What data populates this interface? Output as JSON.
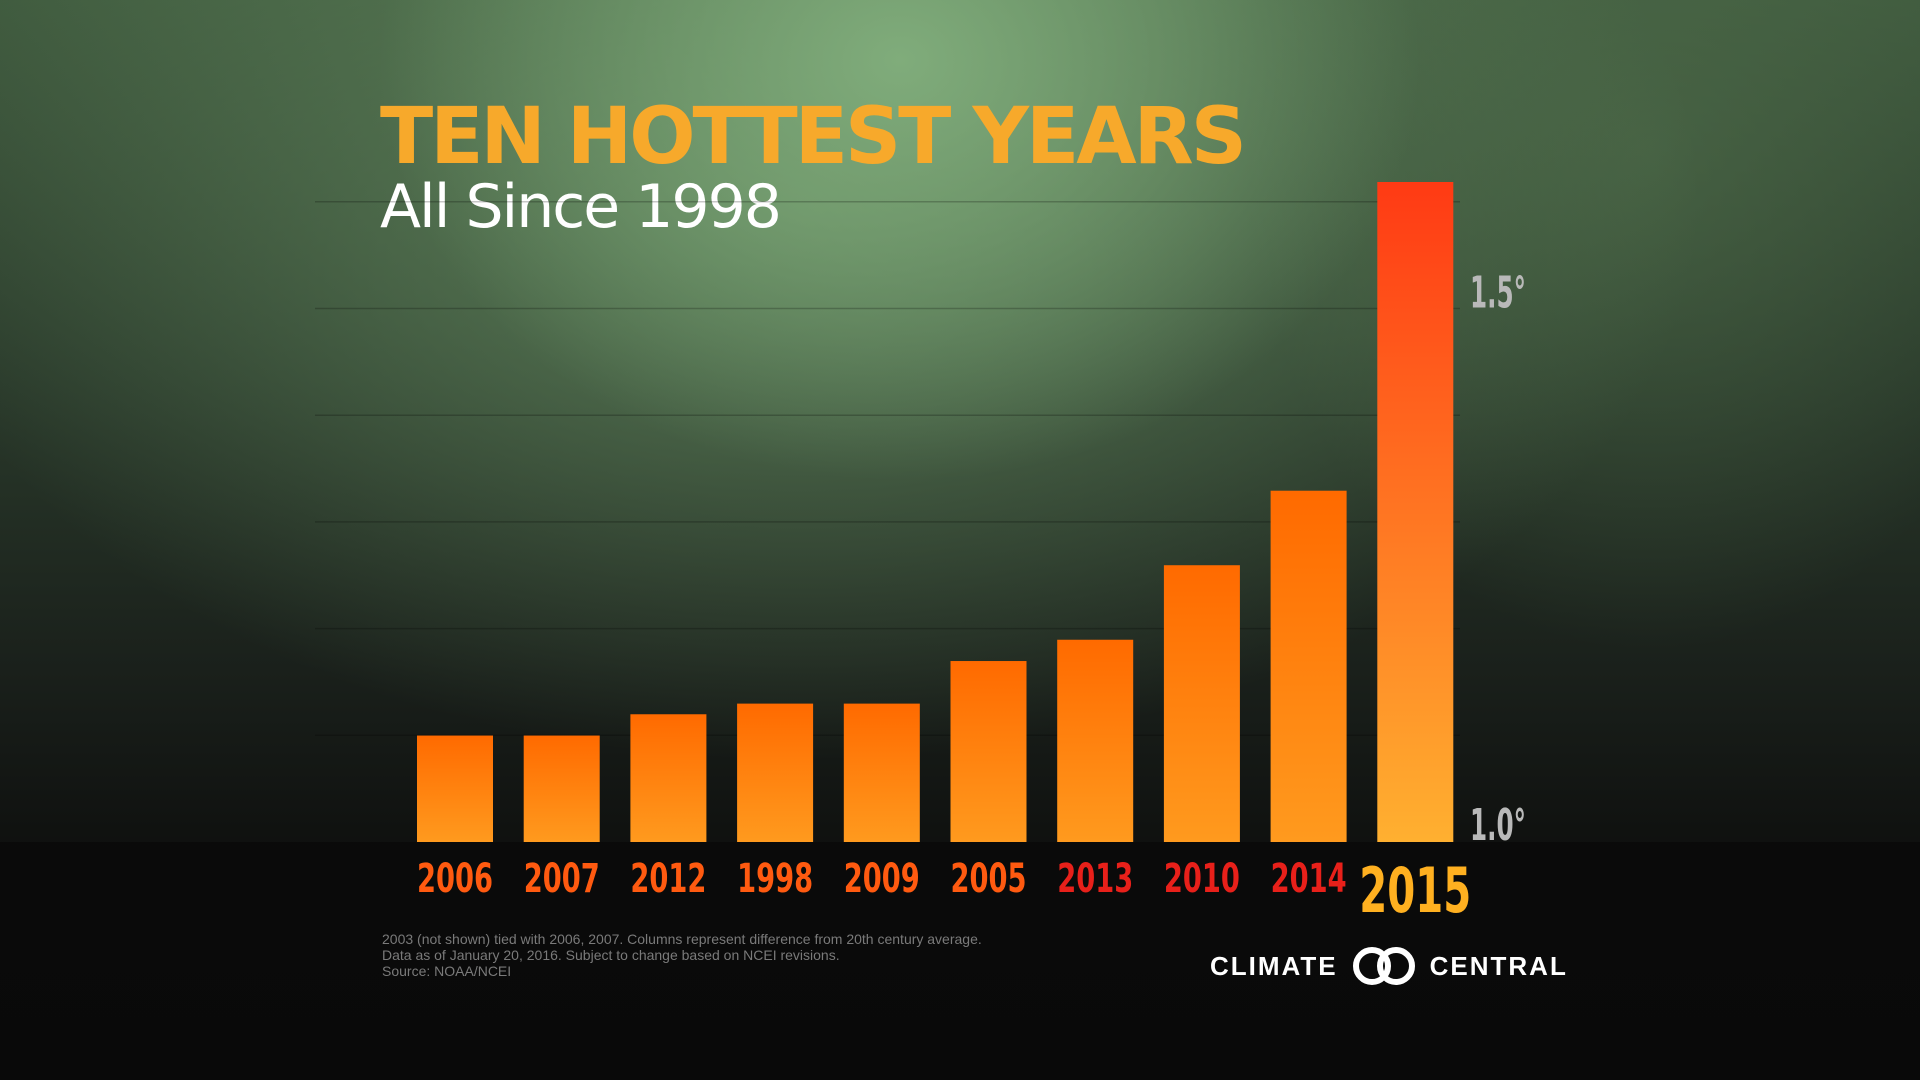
{
  "title": "TEN HOTTEST YEARS",
  "subtitle": "All Since 1998",
  "chart_data": {
    "type": "bar",
    "categories": [
      "2006",
      "2007",
      "2012",
      "1998",
      "2009",
      "2005",
      "2013",
      "2010",
      "2014",
      "2015"
    ],
    "values": [
      1.1,
      1.1,
      1.12,
      1.13,
      1.13,
      1.17,
      1.19,
      1.26,
      1.33,
      1.62
    ],
    "ylim": [
      1.0,
      1.62
    ],
    "y_tick_labels": [
      {
        "value": 1.0,
        "label": "1.0°"
      },
      {
        "value": 1.5,
        "label": "1.5°"
      }
    ],
    "grid": true,
    "highlight_category": "2015",
    "colors": {
      "bar_low": "#ff6a00",
      "bar_high": "#ff9a1e",
      "highlight_top": "#ff3a14",
      "highlight_bottom": "#ffb030",
      "label_orange": "#ff5a10",
      "label_red": "#e8201a",
      "label_highlight": "#ffb020",
      "tick_label": "#b9b9b9"
    }
  },
  "footnotes": [
    "2003 (not shown) tied with 2006, 2007. Columns represent difference from 20th century average.",
    "Data as of January 20, 2016. Subject to change based on NCEI revisions.",
    "Source: NOAA/NCEI"
  ],
  "logo": {
    "left_text": "CLIMATE",
    "right_text": "CENTRAL",
    "icon": "climate-central-rings-icon"
  }
}
